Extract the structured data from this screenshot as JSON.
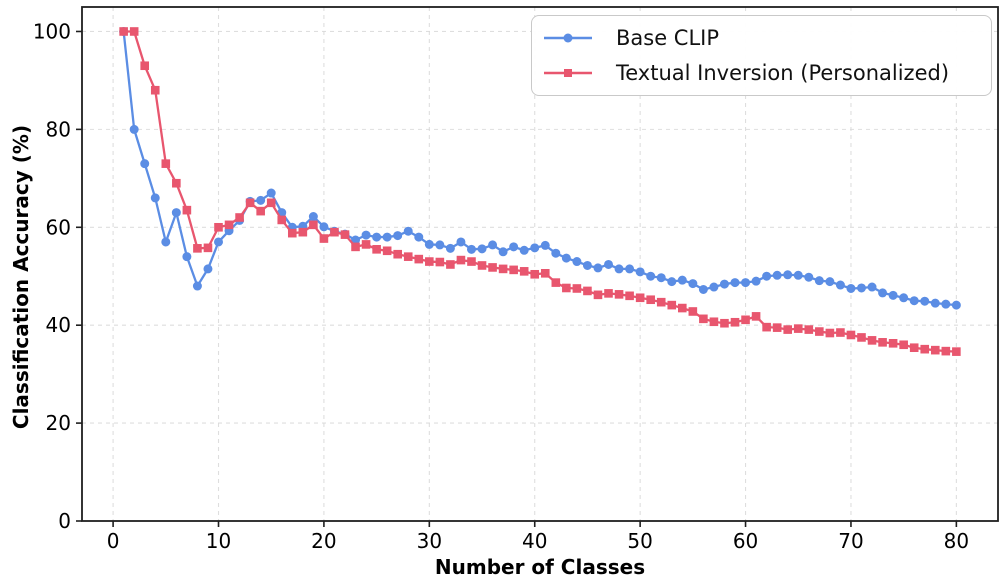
{
  "figure": {
    "background": "#ffffff",
    "text_color": "#000000",
    "grid_color": "#d9d9d9",
    "spine_color": "#1f1f1f"
  },
  "chart_data": {
    "type": "line",
    "title": "",
    "xlabel": "Number of Classes",
    "ylabel": "Classification Accuracy (%)",
    "xlim": [
      -2.95,
      83.95
    ],
    "ylim": [
      0,
      105
    ],
    "xticks": [
      0,
      10,
      20,
      30,
      40,
      50,
      60,
      70,
      80
    ],
    "yticks": [
      0,
      20,
      40,
      60,
      80,
      100
    ],
    "grid": "dashed",
    "legend_position": "upper right",
    "x": [
      1,
      2,
      3,
      4,
      5,
      6,
      7,
      8,
      9,
      10,
      11,
      12,
      13,
      14,
      15,
      16,
      17,
      18,
      19,
      20,
      21,
      22,
      23,
      24,
      25,
      26,
      27,
      28,
      29,
      30,
      31,
      32,
      33,
      34,
      35,
      36,
      37,
      38,
      39,
      40,
      41,
      42,
      43,
      44,
      45,
      46,
      47,
      48,
      49,
      50,
      51,
      52,
      53,
      54,
      55,
      56,
      57,
      58,
      59,
      60,
      61,
      62,
      63,
      64,
      65,
      66,
      67,
      68,
      69,
      70,
      71,
      72,
      73,
      74,
      75,
      76,
      77,
      78,
      79,
      80
    ],
    "series": [
      {
        "name": "Base CLIP",
        "color": "#5b8de4",
        "marker": "circle",
        "values": [
          100,
          80,
          73,
          66,
          57,
          63,
          54,
          48,
          51.5,
          57,
          59.3,
          61.4,
          65.3,
          65.5,
          67,
          63,
          60,
          60.2,
          62.2,
          60.1,
          59.2,
          58.6,
          57.4,
          58.4,
          58,
          58,
          58.3,
          59.2,
          58,
          56.5,
          56.4,
          55.7,
          57,
          55.5,
          55.6,
          56.4,
          55,
          56,
          55.3,
          55.8,
          56.3,
          54.7,
          53.7,
          53,
          52.2,
          51.7,
          52.4,
          51.5,
          51.5,
          50.9,
          50,
          49.7,
          48.9,
          49.2,
          48.5,
          47.3,
          47.8,
          48.4,
          48.7,
          48.7,
          49,
          50,
          50.2,
          50.3,
          50.2,
          49.8,
          49.1,
          48.9,
          48.2,
          47.5,
          47.6,
          47.8,
          46.6,
          46.1,
          45.6,
          45,
          44.9,
          44.5,
          44.3,
          44.1
        ]
      },
      {
        "name": "Textual Inversion (Personalized)",
        "color": "#e8566e",
        "marker": "square",
        "values": [
          100,
          100,
          93,
          88,
          73,
          69,
          63.5,
          55.7,
          55.8,
          60,
          60.5,
          62,
          65,
          63.3,
          65,
          61.5,
          58.8,
          59,
          60.5,
          57.7,
          59,
          58.5,
          56,
          56.5,
          55.5,
          55.2,
          54.5,
          54,
          53.5,
          53,
          52.9,
          52.4,
          53.3,
          53,
          52.2,
          51.8,
          51.5,
          51.3,
          51,
          50.4,
          50.6,
          48.7,
          47.6,
          47.5,
          47,
          46.2,
          46.5,
          46.3,
          46,
          45.6,
          45.2,
          44.7,
          44.1,
          43.5,
          42.8,
          41.3,
          40.7,
          40.4,
          40.6,
          41.1,
          41.8,
          39.6,
          39.5,
          39.1,
          39.3,
          39.1,
          38.7,
          38.4,
          38.5,
          38,
          37.5,
          36.9,
          36.5,
          36.3,
          36,
          35.4,
          35.1,
          34.9,
          34.7,
          34.6
        ]
      }
    ]
  }
}
